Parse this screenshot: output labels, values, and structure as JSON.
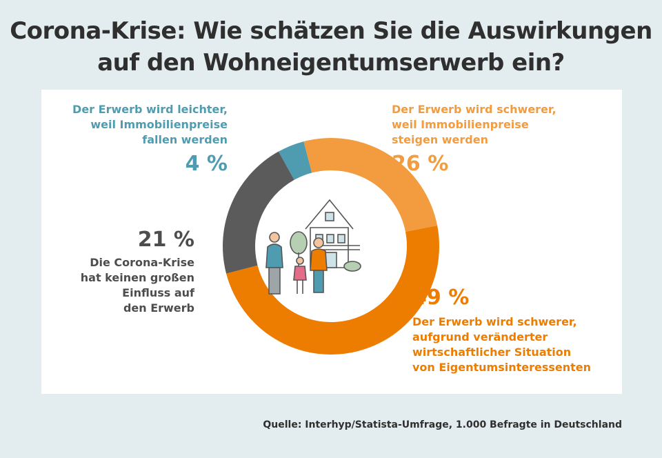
{
  "title_line1": "Corona-Krise: Wie schätzen Sie die Auswirkungen",
  "title_line2": "auf den Wohneigentumserwerb ein?",
  "source": "Quelle: Interhyp/Statista-Umfrage, 1.000 Befragte in Deutschland",
  "chart_data": {
    "type": "pie",
    "title": "Corona-Krise: Wie schätzen Sie die Auswirkungen auf den Wohneigentumserwerb ein?",
    "unit": "%",
    "slices": [
      {
        "label_lines": [
          "Der Erwerb wird leichter,",
          "weil Immobilienpreise",
          "fallen werden"
        ],
        "value": 4,
        "value_label": "4 %",
        "color": "#4f9cb1"
      },
      {
        "label_lines": [
          "Der Erwerb wird schwerer,",
          "weil Immobilienpreise",
          "steigen werden"
        ],
        "value": 26,
        "value_label": "26 %",
        "color": "#f29c3f"
      },
      {
        "label_lines": [
          "Der Erwerb wird schwerer,",
          "aufgrund veränderter",
          "wirtschaftlicher Situation",
          "von Eigentumsinteressenten"
        ],
        "value": 49,
        "value_label": "49 %",
        "color": "#ec7d00"
      },
      {
        "label_lines": [
          "Die Corona-Krise",
          "hat keinen großen",
          "Einfluss auf",
          "den Erwerb"
        ],
        "value": 21,
        "value_label": "21 %",
        "color": "#5b5b5b"
      }
    ]
  }
}
